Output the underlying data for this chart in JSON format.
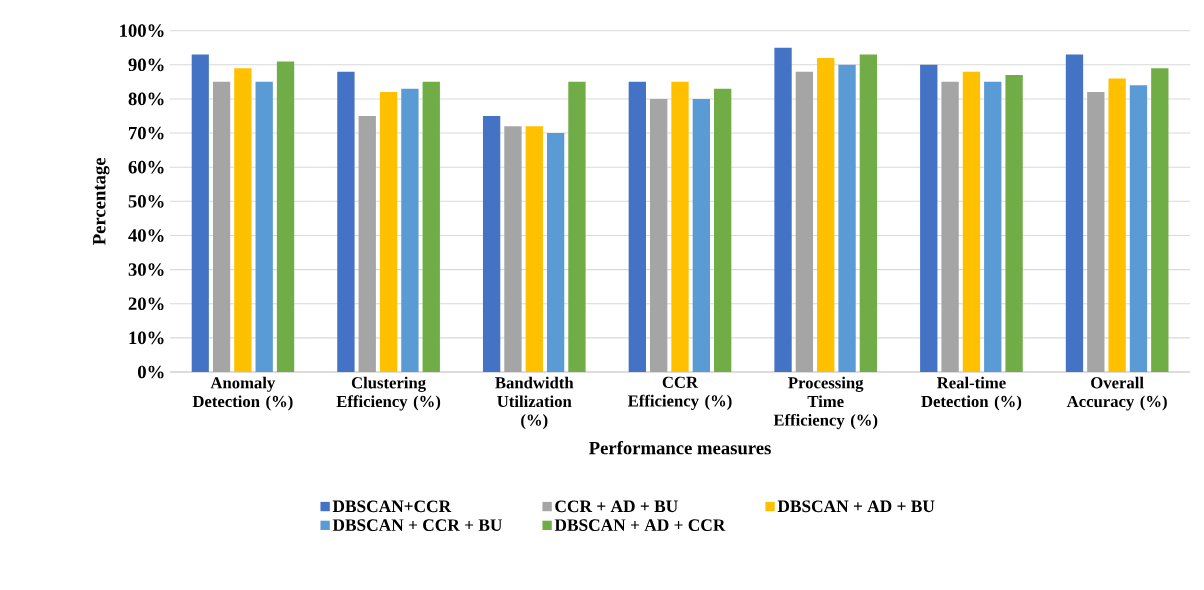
{
  "chart_data": {
    "type": "bar",
    "xlabel": "Performance measures",
    "ylabel": "Percentage",
    "categories": [
      "Anomaly Detection (%)",
      "Clustering Efficiency (%)",
      "Bandwidth Utilization (%)",
      "CCR Efficiency (%)",
      "Processing Time Efficiency (%)",
      "Real-time Detection (%)",
      "Overall Accuracy (%)"
    ],
    "series": [
      {
        "name": "DBSCAN+CCR",
        "color": "#4472c4",
        "values": [
          93,
          88,
          75,
          85,
          95,
          90,
          93
        ]
      },
      {
        "name": "CCR + AD + BU",
        "color": "#a5a5a5",
        "values": [
          85,
          75,
          72,
          80,
          88,
          85,
          82
        ]
      },
      {
        "name": "DBSCAN + AD + BU",
        "color": "#ffc000",
        "values": [
          89,
          82,
          72,
          85,
          92,
          88,
          86
        ]
      },
      {
        "name": "DBSCAN + CCR + BU",
        "color": "#5b9bd5",
        "values": [
          85,
          83,
          70,
          80,
          90,
          85,
          84
        ]
      },
      {
        "name": "DBSCAN + AD + CCR",
        "color": "#70ad47",
        "values": [
          91,
          85,
          85,
          83,
          93,
          87,
          89
        ]
      }
    ],
    "ylim": [
      0,
      100
    ],
    "yticks": [
      {
        "value": 0,
        "label": "0%"
      },
      {
        "value": 10,
        "label": "10%"
      },
      {
        "value": 20,
        "label": "20%"
      },
      {
        "value": 30,
        "label": "30%"
      },
      {
        "value": 40,
        "label": "40%"
      },
      {
        "value": 50,
        "label": "50%"
      },
      {
        "value": 60,
        "label": "60%"
      },
      {
        "value": 70,
        "label": "70%"
      },
      {
        "value": 80,
        "label": "80%"
      },
      {
        "value": 90,
        "label": "90%"
      },
      {
        "value": 100,
        "label": "100%"
      }
    ],
    "grid": "y",
    "legend": "bottom"
  }
}
